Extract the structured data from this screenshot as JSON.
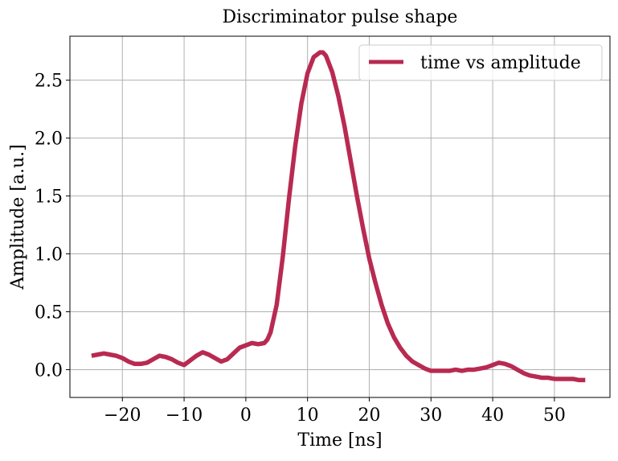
{
  "chart_data": {
    "type": "line",
    "title": "Discriminator pulse shape",
    "xlabel": "Time [ns]",
    "ylabel": "Amplitude [a.u.]",
    "xlim": [
      -28.5,
      59
    ],
    "ylim": [
      -0.24,
      2.88
    ],
    "xticks": [
      -20,
      -10,
      0,
      10,
      20,
      30,
      40,
      50
    ],
    "yticks": [
      0.0,
      0.5,
      1.0,
      1.5,
      2.0,
      2.5
    ],
    "xtick_labels": [
      "−20",
      "−10",
      "0",
      "10",
      "20",
      "30",
      "40",
      "50"
    ],
    "ytick_labels": [
      "0.0",
      "0.5",
      "1.0",
      "1.5",
      "2.0",
      "2.5"
    ],
    "grid": true,
    "legend_position": "top-right",
    "series": [
      {
        "name": "time vs amplitude",
        "color": "#b82a52",
        "x": [
          -25,
          -24,
          -23,
          -22,
          -21,
          -20,
          -19,
          -18,
          -17,
          -16,
          -15,
          -14,
          -13,
          -12,
          -11,
          -10,
          -9,
          -8,
          -7,
          -6,
          -5,
          -4,
          -3,
          -2,
          -1,
          0,
          1,
          2,
          3,
          3.5,
          4,
          5,
          6,
          7,
          8,
          9,
          10,
          11,
          12,
          12.5,
          13,
          14,
          15,
          16,
          17,
          18,
          19,
          20,
          21,
          22,
          23,
          24,
          25,
          26,
          27,
          28,
          29,
          30,
          31,
          32,
          33,
          34,
          35,
          36,
          37,
          38,
          39,
          40,
          41,
          42,
          43,
          44,
          45,
          46,
          47,
          48,
          49,
          50,
          51,
          52,
          53,
          54,
          55
        ],
        "y": [
          0.12,
          0.13,
          0.14,
          0.13,
          0.12,
          0.1,
          0.07,
          0.05,
          0.05,
          0.06,
          0.09,
          0.12,
          0.11,
          0.09,
          0.06,
          0.04,
          0.08,
          0.12,
          0.15,
          0.13,
          0.1,
          0.07,
          0.09,
          0.14,
          0.19,
          0.21,
          0.23,
          0.22,
          0.23,
          0.26,
          0.32,
          0.56,
          0.98,
          1.48,
          1.93,
          2.3,
          2.56,
          2.7,
          2.74,
          2.74,
          2.71,
          2.57,
          2.36,
          2.1,
          1.8,
          1.5,
          1.22,
          0.96,
          0.75,
          0.56,
          0.4,
          0.28,
          0.19,
          0.12,
          0.07,
          0.04,
          0.01,
          -0.01,
          -0.01,
          -0.01,
          -0.01,
          0.0,
          -0.01,
          0.0,
          0.0,
          0.01,
          0.02,
          0.04,
          0.06,
          0.05,
          0.03,
          0.0,
          -0.03,
          -0.05,
          -0.06,
          -0.07,
          -0.07,
          -0.08,
          -0.08,
          -0.08,
          -0.08,
          -0.09,
          -0.09
        ]
      }
    ]
  }
}
